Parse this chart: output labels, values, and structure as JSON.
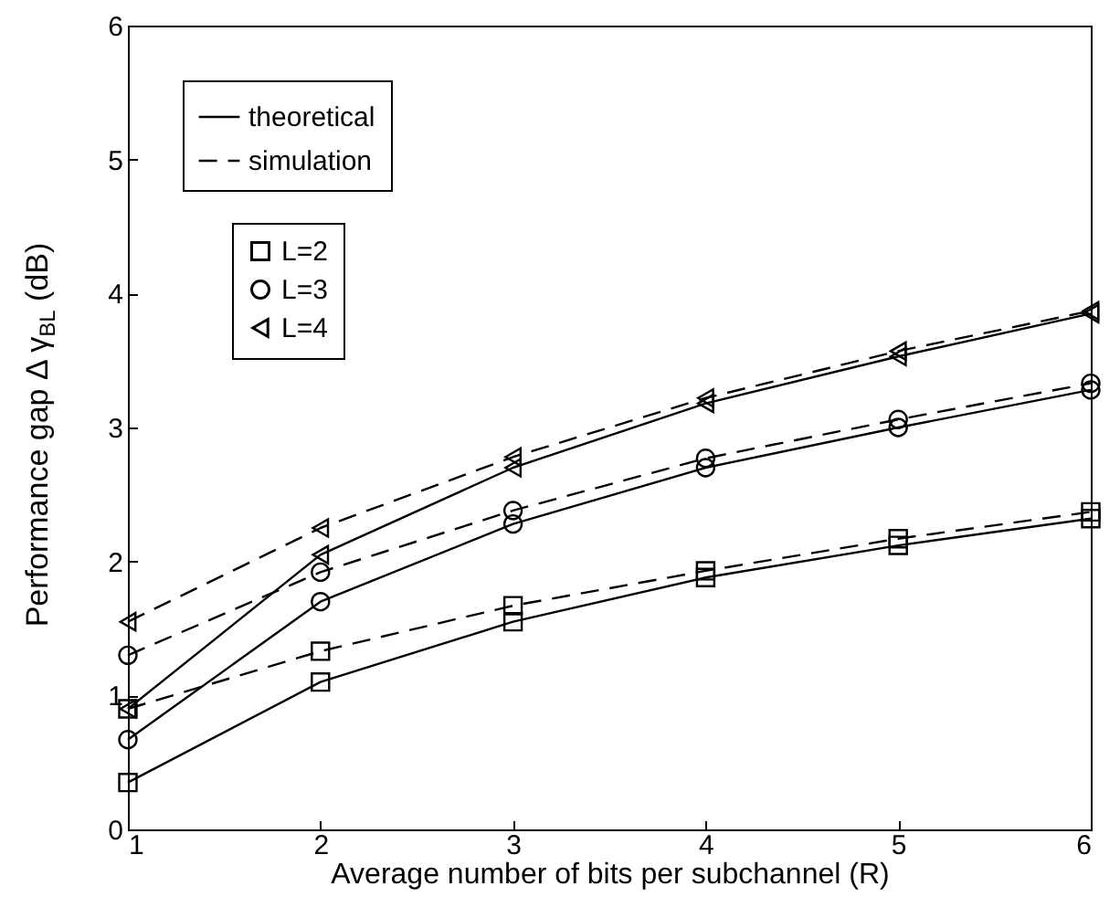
{
  "chart_data": {
    "type": "line",
    "xlabel": "Average number of bits per subchannel (R)",
    "ylabel": "Performance gap Δ γ$_{BL}$ (dB)",
    "x": [
      1,
      2,
      3,
      4,
      5,
      6
    ],
    "xlim": [
      1,
      6
    ],
    "xticks": [
      1,
      2,
      3,
      4,
      5,
      6
    ],
    "ylim": [
      0,
      6
    ],
    "yticks": [
      0,
      1,
      2,
      3,
      4,
      5,
      6
    ],
    "grid": false,
    "legend": "top left",
    "annotations": [
      "theoretical",
      "simulation"
    ],
    "series": [
      {
        "name": "L=2",
        "color": "#000000",
        "marker": "square",
        "line_style": "solid",
        "values": [
          0.35,
          1.1,
          1.55,
          1.88,
          2.12,
          2.32
        ]
      },
      {
        "color": "#000000",
        "marker": "square",
        "line_style": "dashed",
        "values": [
          0.9,
          1.33,
          1.67,
          1.93,
          2.17,
          2.37
        ]
      },
      {
        "name": "L=3",
        "color": "#000000",
        "marker": "circle",
        "line_style": "solid",
        "values": [
          0.67,
          1.7,
          2.28,
          2.7,
          3.0,
          3.28
        ]
      },
      {
        "color": "#000000",
        "marker": "circle",
        "line_style": "dashed",
        "values": [
          1.3,
          1.92,
          2.38,
          2.77,
          3.06,
          3.33
        ]
      },
      {
        "name": "L=4",
        "color": "#000000",
        "marker": "triangle",
        "line_style": "solid",
        "values": [
          0.9,
          2.05,
          2.7,
          3.18,
          3.53,
          3.85
        ]
      },
      {
        "color": "#000000",
        "marker": "triangle",
        "line_style": "dashed",
        "values": [
          1.55,
          2.25,
          2.78,
          3.22,
          3.57,
          3.87
        ]
      }
    ]
  }
}
